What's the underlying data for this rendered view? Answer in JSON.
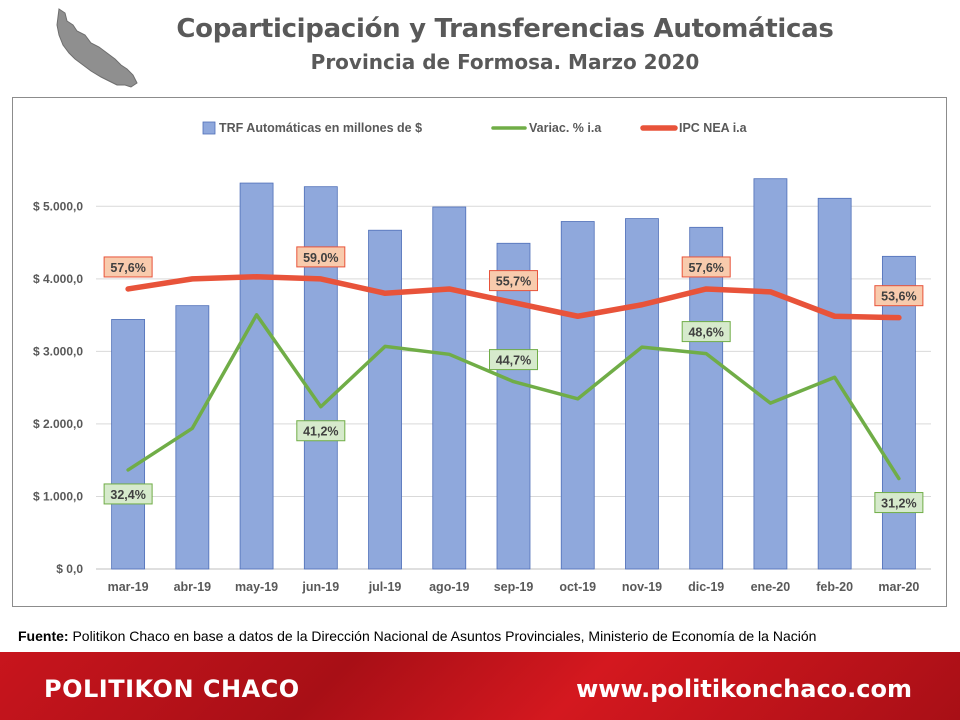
{
  "header": {
    "title": "Coparticipación y Transferencias Automáticas",
    "subtitle": "Provincia de Formosa. Marzo 2020"
  },
  "source": {
    "label": "Fuente:",
    "text": " Politikon Chaco en base a datos de la Dirección Nacional de Asuntos Provinciales, Ministerio de Economía de la Nación"
  },
  "footer": {
    "brand": "POLITIKON CHACO",
    "url": "www.politikonchaco.com"
  },
  "chart_data": {
    "type": "bar",
    "categories": [
      "mar-19",
      "abr-19",
      "may-19",
      "jun-19",
      "jul-19",
      "ago-19",
      "sep-19",
      "oct-19",
      "nov-19",
      "dic-19",
      "ene-20",
      "feb-20",
      "mar-20"
    ],
    "ylim": [
      0,
      5500
    ],
    "yticks": [
      0,
      1000,
      2000,
      3000,
      4000,
      5000
    ],
    "ytick_labels": [
      "$ 0,0",
      "$ 1.000,0",
      "$ 2.000,0",
      "$ 3.000,0",
      "$ 4.000,0",
      "$ 5.000,0"
    ],
    "legend_position": "top",
    "grid": true,
    "series": [
      {
        "name": "TRF Automáticas en millones de $",
        "type": "bar",
        "color": "#8fa8dc",
        "values": [
          3440,
          3630,
          5320,
          5270,
          4670,
          4990,
          4490,
          4790,
          4830,
          4710,
          5380,
          5110,
          4310
        ]
      },
      {
        "name": "Variac. % i.a",
        "type": "line",
        "color": "#70ad47",
        "values": [
          32.4,
          38.2,
          54.0,
          41.2,
          49.6,
          48.5,
          44.7,
          42.3,
          49.5,
          48.6,
          41.7,
          45.3,
          31.2
        ],
        "labels": [
          {
            "index": 0,
            "text": "32,4%"
          },
          {
            "index": 3,
            "text": "41,2%"
          },
          {
            "index": 6,
            "text": "44,7%"
          },
          {
            "index": 9,
            "text": "48,6%"
          },
          {
            "index": 12,
            "text": "31,2%"
          }
        ]
      },
      {
        "name": "IPC NEA i.a",
        "type": "line",
        "color": "#e8533a",
        "values": [
          57.6,
          59.0,
          59.3,
          59.0,
          57.0,
          57.6,
          55.7,
          53.8,
          55.4,
          57.6,
          57.2,
          53.8,
          53.6
        ],
        "labels": [
          {
            "index": 0,
            "text": "57,6%"
          },
          {
            "index": 3,
            "text": "59,0%"
          },
          {
            "index": 6,
            "text": "55,7%"
          },
          {
            "index": 9,
            "text": "57,6%"
          },
          {
            "index": 12,
            "text": "53,6%"
          }
        ]
      }
    ]
  }
}
